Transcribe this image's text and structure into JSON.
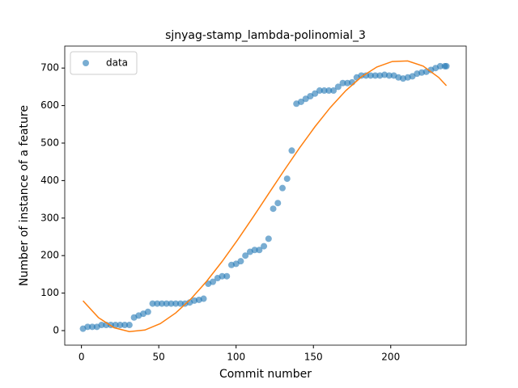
{
  "chart_data": {
    "type": "scatter",
    "title": "sjnyag-stamp_lambda-polinomial_3",
    "x_label": "Commit number",
    "y_label": "Number of instance of a feature",
    "legend": "upper left",
    "xlim": [
      -10.8,
      248.8
    ],
    "ylim": [
      -38.8,
      758.6
    ],
    "xticks": [
      0,
      50,
      100,
      150,
      200
    ],
    "yticks": [
      0,
      100,
      200,
      300,
      400,
      500,
      600,
      700
    ],
    "series": [
      {
        "name": "data",
        "color": "#1f77b4",
        "x": [
          1,
          4,
          7,
          10,
          13,
          16,
          19,
          22,
          25,
          28,
          31,
          34,
          37,
          40,
          43,
          46,
          49,
          52,
          55,
          58,
          61,
          64,
          67,
          70,
          73,
          76,
          79,
          82,
          85,
          88,
          91,
          94,
          97,
          100,
          103,
          106,
          109,
          112,
          115,
          118,
          121,
          124,
          127,
          130,
          133,
          136,
          139,
          142,
          145,
          148,
          151,
          154,
          157,
          160,
          163,
          166,
          169,
          172,
          175,
          178,
          181,
          184,
          187,
          190,
          193,
          196,
          199,
          202,
          205,
          208,
          211,
          214,
          217,
          220,
          223,
          226,
          229,
          232,
          235,
          236
        ],
        "values": [
          5,
          10,
          10,
          10,
          15,
          15,
          15,
          15,
          15,
          15,
          15,
          35,
          40,
          45,
          50,
          72,
          72,
          72,
          72,
          72,
          72,
          72,
          72,
          75,
          80,
          82,
          85,
          125,
          130,
          140,
          145,
          145,
          175,
          178,
          185,
          200,
          210,
          215,
          215,
          225,
          245,
          325,
          340,
          380,
          405,
          480,
          605,
          610,
          618,
          625,
          632,
          640,
          640,
          640,
          640,
          650,
          660,
          660,
          662,
          675,
          680,
          680,
          680,
          680,
          680,
          682,
          680,
          680,
          675,
          672,
          675,
          678,
          685,
          688,
          690,
          695,
          700,
          705,
          705,
          705
        ]
      },
      {
        "color": "#ff7f0e",
        "x": [
          1,
          11,
          21,
          31,
          41,
          51,
          61,
          71,
          81,
          91,
          101,
          111,
          121,
          131,
          141,
          151,
          161,
          171,
          181,
          191,
          201,
          211,
          221,
          231,
          236
        ],
        "values": [
          79.4,
          34.6,
          7.8,
          -2.7,
          1.5,
          18.6,
          47.2,
          85.4,
          131.7,
          184.5,
          242.0,
          302.6,
          364.8,
          426.7,
          486.9,
          543.6,
          595.2,
          640.0,
          676.4,
          702.8,
          717.5,
          718.9,
          705.2,
          675.0,
          653.0
        ]
      }
    ]
  }
}
